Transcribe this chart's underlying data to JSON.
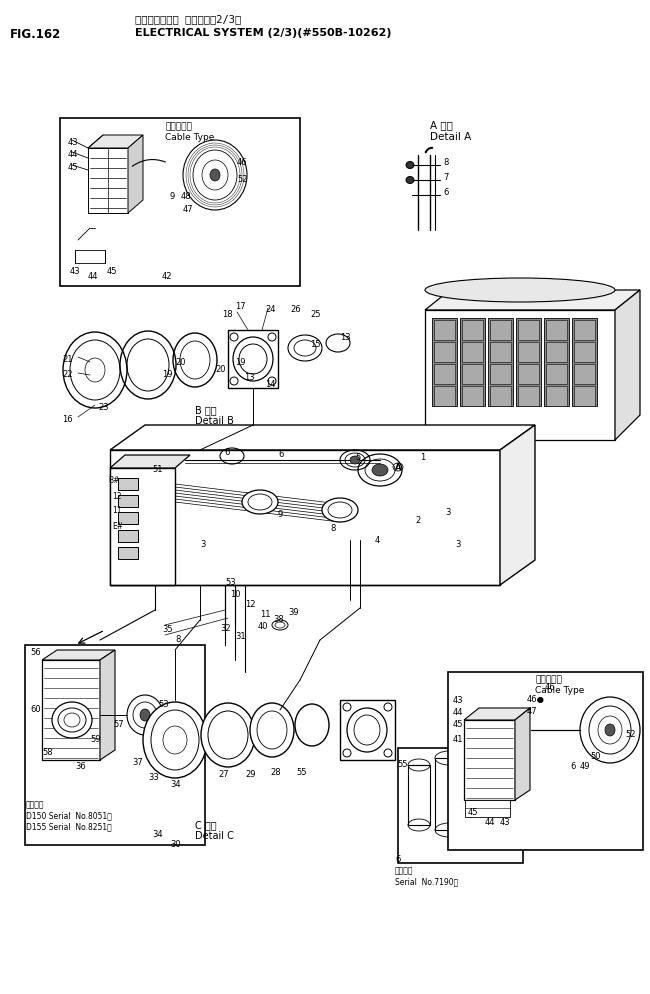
{
  "fig_label": "FIG.162",
  "title_jp": "エレクトリカル システム（2/3）",
  "title_en": "ELECTRICAL SYSTEM (2/3)(#550B-10262)",
  "bg_color": "#ffffff",
  "lc": "#000000",
  "fig_w": 6.5,
  "fig_h": 9.94,
  "dpi": 100
}
